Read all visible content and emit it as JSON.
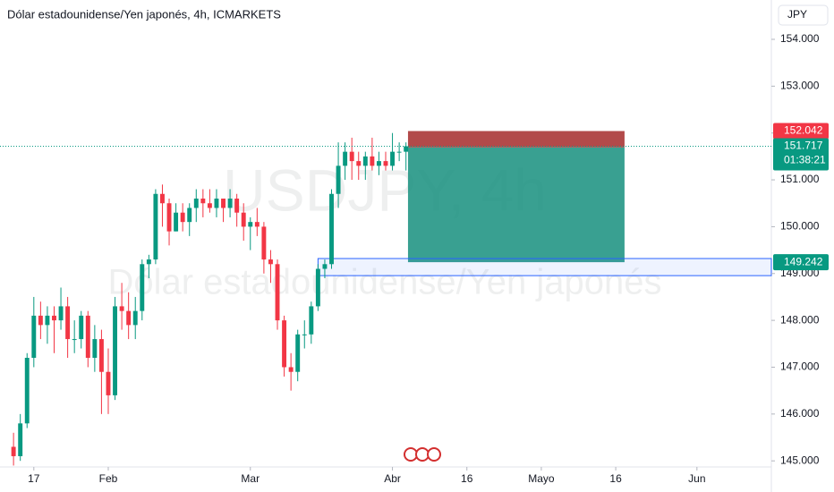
{
  "chart_data": {
    "type": "candlestick",
    "title": "Dólar estadounidense/Yen japonés, 4h, ICMARKETS",
    "watermark": "USDJPY, 4h",
    "watermark_subtitle": "Dólar estadounidense/Yen japonés",
    "currency": "JPY",
    "up_color": "#089981",
    "down_color": "#f23645",
    "x": [
      -3,
      -2,
      -1,
      0,
      1,
      2,
      3,
      4,
      5,
      6,
      7,
      8,
      9,
      10,
      11,
      12,
      13,
      14,
      15,
      16,
      17,
      18,
      19,
      20,
      21,
      22,
      23,
      24,
      25,
      26,
      27,
      28,
      29,
      30,
      31,
      32,
      33,
      34,
      35,
      36,
      37,
      38,
      39,
      40,
      41,
      42,
      43,
      44,
      45,
      46,
      47,
      48,
      49,
      50,
      51,
      52,
      53,
      54,
      55
    ],
    "open": [
      145.3,
      145.1,
      145.8,
      147.2,
      148.1,
      147.9,
      148.1,
      148.0,
      148.3,
      147.6,
      147.6,
      148.1,
      147.2,
      147.6,
      146.9,
      146.4,
      148.3,
      148.2,
      147.9,
      148.2,
      149.2,
      149.3,
      150.7,
      150.5,
      149.9,
      150.3,
      150.1,
      150.4,
      150.6,
      150.5,
      150.4,
      150.6,
      150.4,
      150.6,
      150.3,
      150.0,
      150.1,
      150.0,
      149.3,
      149.2,
      148.0,
      147.0,
      146.9,
      147.7,
      147.7,
      148.3,
      149.1,
      149.2,
      150.7,
      151.3,
      151.6,
      151.4,
      151.3,
      151.5,
      151.3,
      151.4,
      151.3,
      151.6,
      151.6
    ],
    "high": [
      145.6,
      146.0,
      147.3,
      148.5,
      148.4,
      148.3,
      148.3,
      148.7,
      148.5,
      148.0,
      148.2,
      148.2,
      147.9,
      147.8,
      147.4,
      148.5,
      148.8,
      148.6,
      148.5,
      149.3,
      149.4,
      150.8,
      150.9,
      150.6,
      150.5,
      150.5,
      150.5,
      150.8,
      150.8,
      150.8,
      150.8,
      150.6,
      150.8,
      150.7,
      150.5,
      150.2,
      150.4,
      150.1,
      149.5,
      149.3,
      148.1,
      147.3,
      147.8,
      148.0,
      148.4,
      149.2,
      149.3,
      150.8,
      151.8,
      151.8,
      151.9,
      151.6,
      151.6,
      151.9,
      151.6,
      151.6,
      152.0,
      151.8,
      151.8
    ],
    "low": [
      144.9,
      145.0,
      145.7,
      147.0,
      147.6,
      147.5,
      147.3,
      147.8,
      147.2,
      147.3,
      147.4,
      147.0,
      146.9,
      146.0,
      146.0,
      146.3,
      147.8,
      147.6,
      147.6,
      148.0,
      148.9,
      149.2,
      150.0,
      149.6,
      149.9,
      149.9,
      149.8,
      150.1,
      150.2,
      150.3,
      150.2,
      150.1,
      150.2,
      150.0,
      149.7,
      149.5,
      149.8,
      149.0,
      148.8,
      147.8,
      146.8,
      146.5,
      146.7,
      147.4,
      147.5,
      148.2,
      148.9,
      149.1,
      150.4,
      151.0,
      151.0,
      151.0,
      151.0,
      151.2,
      151.1,
      151.2,
      151.2,
      151.4,
      151.2
    ],
    "close": [
      145.1,
      145.8,
      147.2,
      148.1,
      147.9,
      148.1,
      148.0,
      148.3,
      147.6,
      147.6,
      148.1,
      147.2,
      147.6,
      146.9,
      146.4,
      148.3,
      148.2,
      147.9,
      148.2,
      149.2,
      149.3,
      150.7,
      150.5,
      149.9,
      150.3,
      150.1,
      150.4,
      150.6,
      150.5,
      150.4,
      150.6,
      150.4,
      150.6,
      150.3,
      150.0,
      150.1,
      150.0,
      149.3,
      149.2,
      148.0,
      147.0,
      146.9,
      147.7,
      147.7,
      148.3,
      149.1,
      149.2,
      150.7,
      151.3,
      151.6,
      151.4,
      151.3,
      151.5,
      151.3,
      151.4,
      151.3,
      151.6,
      151.6,
      151.717
    ],
    "countdown": "01:38:21",
    "position": {
      "x_start": 55.3,
      "x_end": 87.3,
      "stop": 152.042,
      "entry": 151.692,
      "target": 149.242
    },
    "zone": {
      "x_start": 42,
      "top": 149.32,
      "bottom": 148.955
    },
    "xlim": [
      -5,
      109
    ],
    "xticks": [
      {
        "value": 0,
        "label": "17"
      },
      {
        "value": 11,
        "label": "Feb"
      },
      {
        "value": 32,
        "label": "Mar"
      },
      {
        "value": 53,
        "label": "Abr"
      },
      {
        "value": 64,
        "label": "16"
      },
      {
        "value": 75,
        "label": "Mayo"
      },
      {
        "value": 86,
        "label": "16"
      },
      {
        "value": 98,
        "label": "Jun"
      }
    ],
    "ylim": [
      144.87,
      154.84
    ],
    "yticks": [
      {
        "value": 145,
        "label": "145.000"
      },
      {
        "value": 146,
        "label": "146.000"
      },
      {
        "value": 147,
        "label": "147.000"
      },
      {
        "value": 148,
        "label": "148.000"
      },
      {
        "value": 149,
        "label": "149.000"
      },
      {
        "value": 150,
        "label": "150.000"
      },
      {
        "value": 151,
        "label": "151.000"
      },
      {
        "value": 152,
        "label": "152.000"
      },
      {
        "value": 153,
        "label": "153.000"
      },
      {
        "value": 154,
        "label": "154.000"
      }
    ]
  }
}
